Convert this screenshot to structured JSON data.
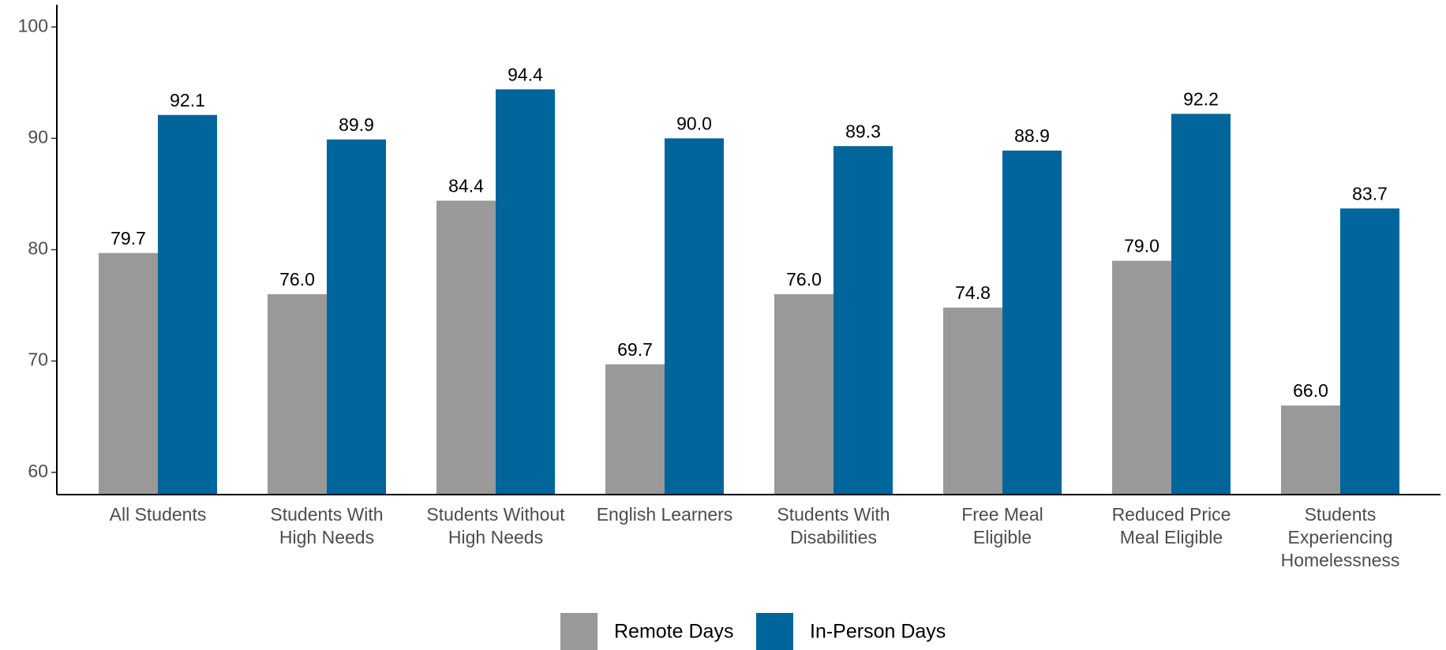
{
  "chart_data": {
    "type": "bar",
    "categories": [
      [
        "All Students"
      ],
      [
        "Students With",
        "High Needs"
      ],
      [
        "Students Without",
        "High Needs"
      ],
      [
        "English Learners"
      ],
      [
        "Students With",
        "Disabilities"
      ],
      [
        "Free Meal",
        "Eligible"
      ],
      [
        "Reduced Price",
        "Meal Eligible"
      ],
      [
        "Students",
        "Experiencing",
        "Homelessness"
      ]
    ],
    "series": [
      {
        "name": "Remote Days",
        "color": "#999999",
        "values": [
          79.7,
          76.0,
          84.4,
          69.7,
          76.0,
          74.8,
          79.0,
          66.0
        ],
        "value_labels": [
          "79.7",
          "76.0",
          "84.4",
          "69.7",
          "76.0",
          "74.8",
          "79.0",
          "66.0"
        ]
      },
      {
        "name": "In-Person Days",
        "color": "#00659a",
        "values": [
          92.1,
          89.9,
          94.4,
          90.0,
          89.3,
          88.9,
          92.2,
          83.7
        ],
        "value_labels": [
          "92.1",
          "89.9",
          "94.4",
          "90.0",
          "89.3",
          "88.9",
          "92.2",
          "83.7"
        ]
      }
    ],
    "ylim": [
      58,
      102
    ],
    "yticks": [
      60,
      70,
      80,
      90,
      100
    ],
    "legend": "bottom"
  }
}
